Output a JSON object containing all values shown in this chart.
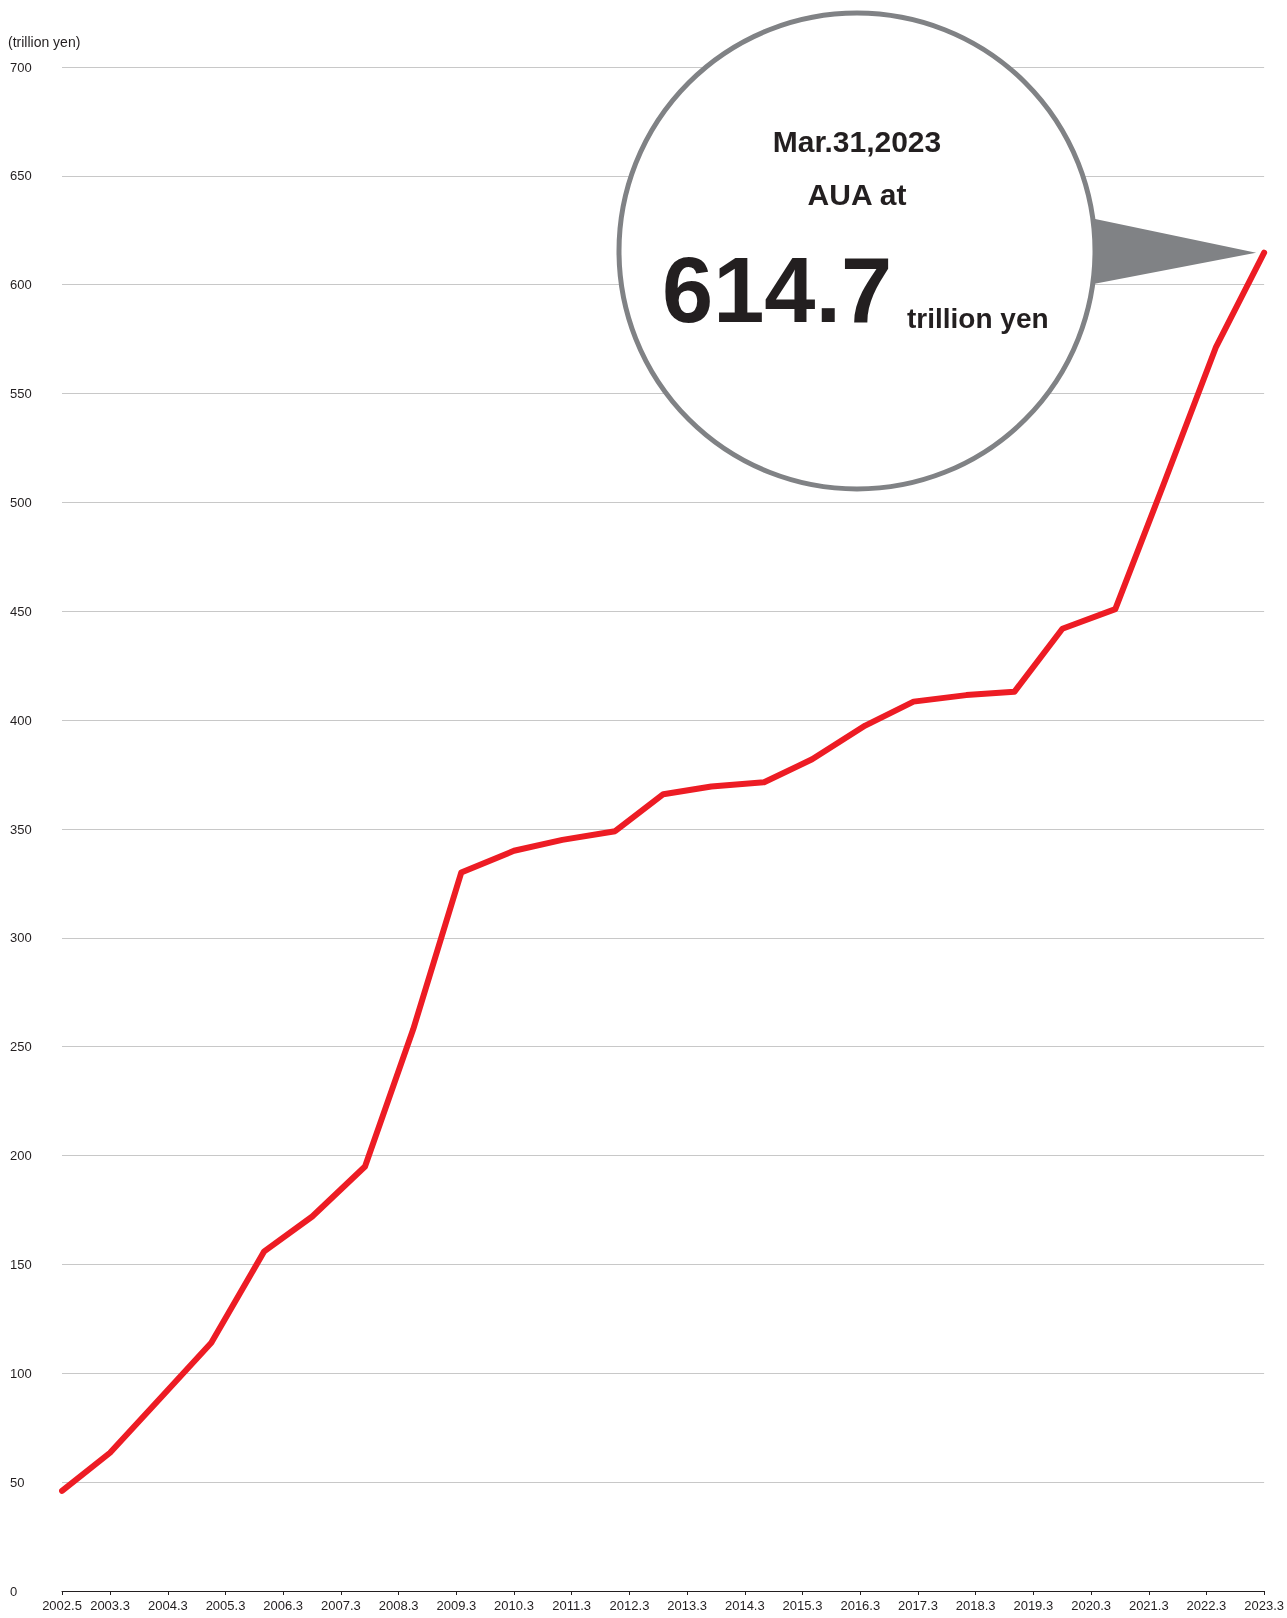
{
  "chart_data": {
    "type": "line",
    "ylabel": "(trillion yen)",
    "annotations": [
      "Mar.31,2023",
      "AUA at",
      "614.7",
      "trillion yen"
    ],
    "xlim": [
      "2002-05",
      "2023-03"
    ],
    "xticks": [
      {
        "value": "2002-05",
        "label": "2002.5"
      },
      {
        "value": "2003-03",
        "label": "2003.3"
      },
      {
        "value": "2004-03",
        "label": "2004.3"
      },
      {
        "value": "2005-03",
        "label": "2005.3"
      },
      {
        "value": "2006-03",
        "label": "2006.3"
      },
      {
        "value": "2007-03",
        "label": "2007.3"
      },
      {
        "value": "2008-03",
        "label": "2008.3"
      },
      {
        "value": "2009-03",
        "label": "2009.3"
      },
      {
        "value": "2010-03",
        "label": "2010.3"
      },
      {
        "value": "2011-03",
        "label": "2011.3"
      },
      {
        "value": "2012-03",
        "label": "2012.3"
      },
      {
        "value": "2013-03",
        "label": "2013.3"
      },
      {
        "value": "2014-03",
        "label": "2014.3"
      },
      {
        "value": "2015-03",
        "label": "2015.3"
      },
      {
        "value": "2016-03",
        "label": "2016.3"
      },
      {
        "value": "2017-03",
        "label": "2017.3"
      },
      {
        "value": "2018-03",
        "label": "2018.3"
      },
      {
        "value": "2019-03",
        "label": "2019.3"
      },
      {
        "value": "2020-03",
        "label": "2020.3"
      },
      {
        "value": "2021-03",
        "label": "2021.3"
      },
      {
        "value": "2022-03",
        "label": "2022.3"
      },
      {
        "value": "2023-03",
        "label": "2023.3"
      }
    ],
    "ylim": [
      0,
      700
    ],
    "yticks": [
      0,
      50,
      100,
      150,
      200,
      250,
      300,
      350,
      400,
      450,
      500,
      550,
      600,
      650,
      700
    ],
    "grid": "y",
    "marker": "none",
    "line_style": "solid",
    "series": [
      {
        "color": "#ed1c24",
        "x": [
          "2002-05",
          "2003-03",
          "2004-02",
          "2004-12",
          "2005-11",
          "2006-09",
          "2007-08",
          "2008-06",
          "2009-04",
          "2010-03",
          "2011-01",
          "2011-12",
          "2012-10",
          "2013-08",
          "2014-07",
          "2015-05",
          "2016-04",
          "2017-02",
          "2018-01",
          "2018-11",
          "2019-09",
          "2020-08",
          "2021-06",
          "2022-05",
          "2023-03"
        ],
        "values": [
          46,
          63.5,
          90,
          114,
          156,
          172,
          195,
          258,
          330,
          340,
          345,
          349,
          366,
          369.5,
          371.5,
          382,
          397.5,
          408.5,
          411.5,
          413,
          442,
          451,
          508,
          571.5,
          614.7
        ]
      }
    ]
  }
}
